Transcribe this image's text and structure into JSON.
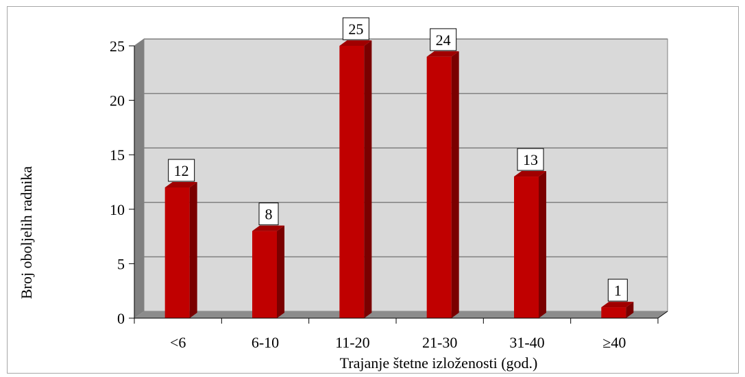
{
  "chart_data": {
    "type": "bar",
    "categories": [
      "<6",
      "6-10",
      "11-20",
      "21-30",
      "31-40",
      "≥40"
    ],
    "values": [
      12,
      8,
      25,
      24,
      13,
      1
    ],
    "data_labels": [
      "12",
      "8",
      "25",
      "24",
      "13",
      "1"
    ],
    "title": "",
    "xlabel": "Trajanje štetne izloženosti (god.)",
    "ylabel": "Broj oboljelih radnika",
    "ylim": [
      0,
      25
    ],
    "yticks": [
      "0",
      "5",
      "10",
      "15",
      "20",
      "25"
    ],
    "grid": true,
    "legend": "none",
    "colors": {
      "bar_front": "#c00000",
      "bar_side": "#7a0000",
      "bar_top": "#a00000",
      "wall": "#d9d9d9",
      "side_wall": "#808080",
      "floor": "#8c8c8c",
      "grid": "#7f7f7f"
    }
  }
}
